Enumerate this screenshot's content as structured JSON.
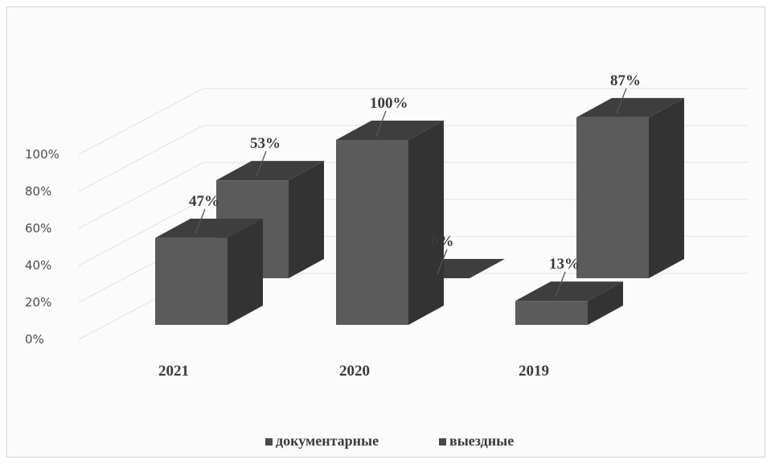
{
  "chart_data": {
    "type": "bar",
    "categories": [
      "2021",
      "2020",
      "2019"
    ],
    "series": [
      {
        "name": "документарные",
        "values": [
          47,
          100,
          13
        ],
        "labels": [
          "47%",
          "100%",
          "13%"
        ]
      },
      {
        "name": "выездные",
        "values": [
          53,
          0,
          87
        ],
        "labels": [
          "53%",
          "0%",
          "87%"
        ]
      }
    ],
    "ylim": [
      0,
      100
    ],
    "y_ticks": [
      "0%",
      "20%",
      "40%",
      "60%",
      "80%",
      "100%"
    ],
    "grid": true,
    "three_d": true,
    "legend_position": "bottom",
    "colors": {
      "bar_face": "#5b5b5b",
      "bar_top": "#3e3e3e",
      "bar_side": "#333333",
      "grid": "#e2e2e2"
    }
  }
}
